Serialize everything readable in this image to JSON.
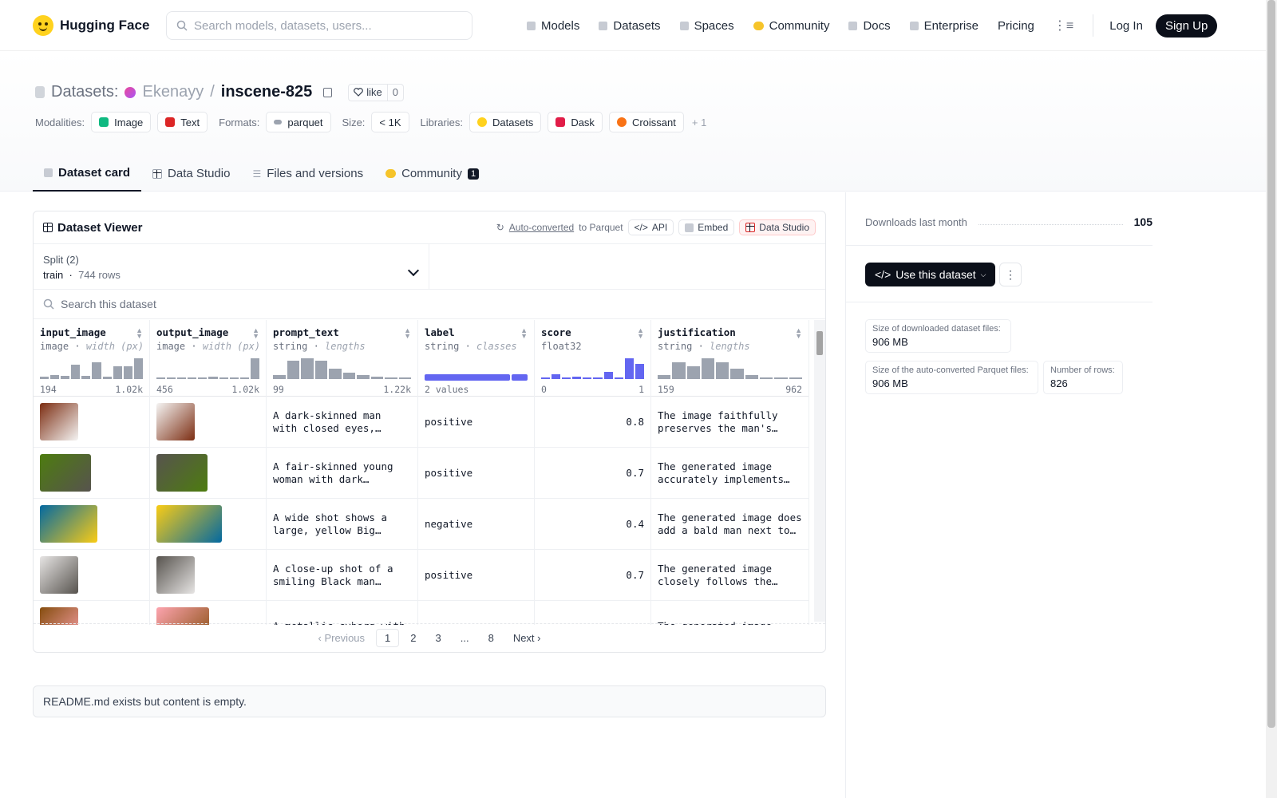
{
  "nav": {
    "brand": "Hugging Face",
    "search_placeholder": "Search models, datasets, users...",
    "links": [
      "Models",
      "Datasets",
      "Spaces",
      "Community",
      "Docs",
      "Enterprise",
      "Pricing"
    ],
    "login": "Log In",
    "signup": "Sign Up"
  },
  "header": {
    "section": "Datasets:",
    "owner": "Ekenayy",
    "name": "inscene-825",
    "like_label": "like",
    "like_count": "0",
    "modalities_label": "Modalities:",
    "modalities": [
      "Image",
      "Text"
    ],
    "formats_label": "Formats:",
    "format": "parquet",
    "size_label": "Size:",
    "size": "< 1K",
    "libraries_label": "Libraries:",
    "libraries": [
      "Datasets",
      "Dask",
      "Croissant"
    ],
    "libraries_more": "+ 1"
  },
  "tabs": [
    {
      "label": "Dataset card"
    },
    {
      "label": "Data Studio"
    },
    {
      "label": "Files and versions"
    },
    {
      "label": "Community",
      "badge": "1"
    }
  ],
  "viewer": {
    "title": "Dataset Viewer",
    "auto_converted": "Auto-converted",
    "to_parquet": "to Parquet",
    "api": "API",
    "embed": "Embed",
    "data_studio": "Data Studio",
    "split_label": "Split (2)",
    "split_value": "train",
    "split_rows": "744 rows",
    "search_placeholder": "Search this dataset",
    "columns": [
      {
        "name": "input_image",
        "type": "image",
        "stat": "width (px)",
        "min": "194",
        "max": "1.02k",
        "hist": [
          0.1,
          0.2,
          0.15,
          0.7,
          0.15,
          0.8,
          0.1,
          0.6,
          0.6,
          1.0
        ]
      },
      {
        "name": "output_image",
        "type": "image",
        "stat": "width (px)",
        "min": "456",
        "max": "1.02k",
        "hist": [
          0.05,
          0.05,
          0.05,
          0.05,
          0.05,
          0.1,
          0.05,
          0.05,
          0.05,
          1.0
        ]
      },
      {
        "name": "prompt_text",
        "type": "string",
        "stat": "lengths",
        "min": "99",
        "max": "1.22k",
        "hist": [
          0.2,
          0.9,
          1.0,
          0.9,
          0.5,
          0.3,
          0.2,
          0.1,
          0.05,
          0.05
        ]
      },
      {
        "name": "label",
        "type": "string",
        "stat": "classes",
        "min": "2 values",
        "max": "",
        "classes": [
          0.84,
          0.16
        ]
      },
      {
        "name": "score",
        "type": "float32",
        "stat": "",
        "min": "0",
        "max": "1",
        "hist": [
          0.05,
          0.25,
          0.0,
          0.1,
          0.05,
          0.0,
          0.35,
          0.0,
          1.0,
          0.75
        ]
      },
      {
        "name": "justification",
        "type": "string",
        "stat": "lengths",
        "min": "159",
        "max": "962",
        "hist": [
          0.2,
          0.8,
          0.6,
          1.0,
          0.8,
          0.5,
          0.2,
          0.05,
          0.05,
          0.05
        ]
      }
    ],
    "rows": [
      {
        "prompt": "A dark-skinned man with closed eyes, wearing a white shirt...",
        "label": "positive",
        "score": "0.8",
        "justification": "The image faithfully preserves the man's facial features..."
      },
      {
        "prompt": "A fair-skinned young woman with dark hair...",
        "label": "positive",
        "score": "0.7",
        "justification": "The generated image accurately implements the..."
      },
      {
        "prompt": "A wide shot shows a large, yellow Big Bird...",
        "label": "negative",
        "score": "0.4",
        "justification": "The generated image does add a bald man next to Big Bird..."
      },
      {
        "prompt": "A close-up shot of a smiling Black man with...",
        "label": "positive",
        "score": "0.7",
        "justification": "The generated image closely follows the prompt..."
      },
      {
        "prompt": "A metallic cyborg with",
        "label": "",
        "score": "",
        "justification": "The generated image"
      }
    ],
    "pager": {
      "prev": "Previous",
      "pages": [
        "1",
        "2",
        "3",
        "...",
        "8"
      ],
      "next": "Next"
    }
  },
  "readme": "README.md exists but content is empty.",
  "sidebar": {
    "downloads_label": "Downloads last month",
    "downloads_value": "105",
    "use_button": "Use this dataset",
    "dl_size_label": "Size of downloaded dataset files:",
    "dl_size_value": "906 MB",
    "parquet_size_label": "Size of the auto-converted Parquet files:",
    "parquet_size_value": "906 MB",
    "rows_label": "Number of rows:",
    "rows_value": "826"
  },
  "colors": {
    "accent": "#6366f1",
    "dark": "#0b0f19",
    "brand_yellow": "#ffd21e"
  }
}
